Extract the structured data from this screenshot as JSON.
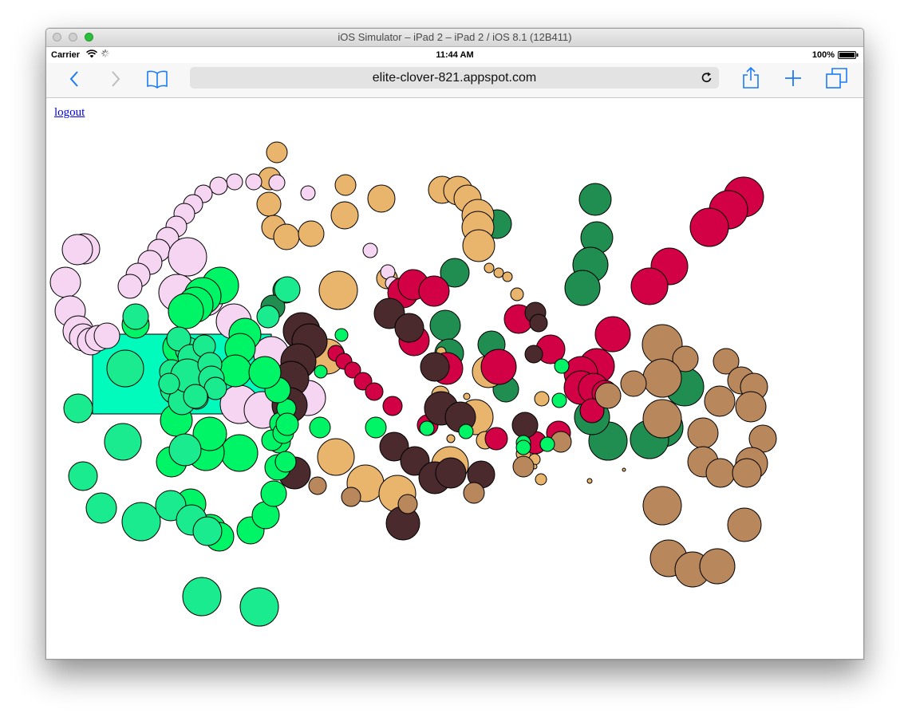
{
  "window": {
    "title": "iOS Simulator – iPad 2 – iPad 2 / iOS 8.1 (12B411)"
  },
  "status_bar": {
    "carrier": "Carrier",
    "time": "11:44 AM",
    "battery": "100%"
  },
  "browser": {
    "url": "elite-clover-821.appspot.com",
    "icons": {
      "back": "chevron-left-icon",
      "forward": "chevron-right-icon",
      "bookmarks": "book-icon",
      "reload": "reload-icon",
      "share": "share-icon",
      "add": "plus-icon",
      "tabs": "tabs-icon"
    },
    "accent_color": "#1a7cf5"
  },
  "page": {
    "logout_label": "logout"
  },
  "colors": {
    "pink": "#f5d5f2",
    "tan": "#e9b56d",
    "darkgreen": "#1f8e50",
    "crimson": "#d20044",
    "brown": "#b8875b",
    "green": "#00f566",
    "seafoam": "#1aeb8e",
    "maroon": "#4a2a2d",
    "rect": "#00fbbd"
  }
}
